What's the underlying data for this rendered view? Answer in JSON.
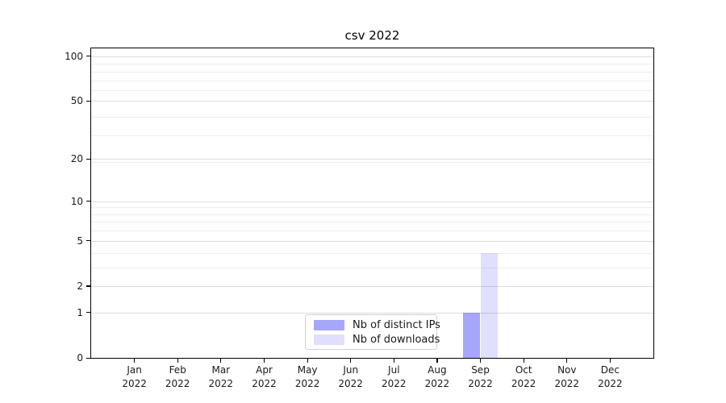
{
  "chart_data": {
    "type": "bar",
    "title": "csv 2022",
    "xlabel": "",
    "ylabel": "",
    "categories": [
      "Jan 2022",
      "Feb 2022",
      "Mar 2022",
      "Apr 2022",
      "May 2022",
      "Jun 2022",
      "Jul 2022",
      "Aug 2022",
      "Sep 2022",
      "Oct 2022",
      "Nov 2022",
      "Dec 2022"
    ],
    "series": [
      {
        "name": "Nb of distinct IPs",
        "color_hex": "#a8a8f7",
        "color_rgba": "rgba(60,60,246,0.46)",
        "values": [
          0,
          0,
          0,
          0,
          0,
          0,
          0,
          0,
          1,
          0,
          0,
          0
        ]
      },
      {
        "name": "Nb of downloads",
        "color_hex": "#dcdcf8",
        "color_rgba": "rgba(60,60,246,0.165)",
        "values": [
          0,
          0,
          0,
          0,
          0,
          0,
          0,
          0,
          4,
          0,
          0,
          0
        ]
      }
    ],
    "yscale": "log10(1+y)",
    "y_ticks": [
      0,
      1,
      2,
      5,
      10,
      20,
      50,
      100
    ],
    "y_minor_ticks": [
      3,
      4,
      6,
      7,
      8,
      9,
      19,
      29,
      39,
      59,
      69,
      79,
      89
    ],
    "ylim": [
      0,
      113
    ],
    "grid": true,
    "legend_position": "lower center",
    "colors": {
      "axis": "#000000",
      "grid_major": "#dcdcdc",
      "grid_minor": "#efefef",
      "background": "#ffffff"
    }
  }
}
